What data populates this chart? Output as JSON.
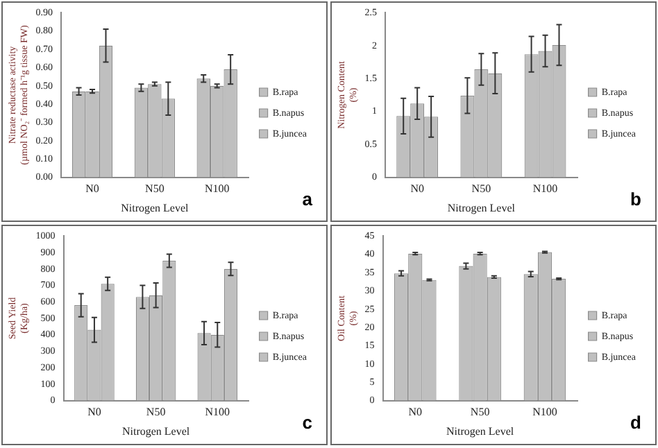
{
  "chart_data": [
    {
      "type": "bar",
      "categories": [
        "N0",
        "N50",
        "N100"
      ],
      "xlabel": "Nitrogen Level",
      "ylabel": "Nitrate reductase activity\n(µmol NO₂⁻ formed h⁻¹g tissue FW)",
      "ylim": [
        0,
        0.9
      ],
      "yticks": [
        {
          "value": 0,
          "label": "0.00"
        },
        {
          "value": 0.1,
          "label": "0.10"
        },
        {
          "value": 0.2,
          "label": "0.20"
        },
        {
          "value": 0.3,
          "label": "0.30"
        },
        {
          "value": 0.4,
          "label": "0.40"
        },
        {
          "value": 0.5,
          "label": "0.50"
        },
        {
          "value": 0.6,
          "label": "0.60"
        },
        {
          "value": 0.7,
          "label": "0.70"
        },
        {
          "value": 0.8,
          "label": "0.80"
        },
        {
          "value": 0.9,
          "label": "0.90"
        }
      ],
      "grid": false,
      "legend": "right",
      "annotations": [
        "a"
      ],
      "series": [
        {
          "name": "B.rapa",
          "color": "#bfbfbf",
          "values": [
            0.47,
            0.49,
            0.54
          ],
          "errors": [
            0.02,
            0.02,
            0.02
          ]
        },
        {
          "name": "B.napus",
          "color": "#bfbfbf",
          "values": [
            0.47,
            0.51,
            0.5
          ],
          "errors": [
            0.01,
            0.01,
            0.01
          ]
        },
        {
          "name": "B.juncea",
          "color": "#bfbfbf",
          "values": [
            0.72,
            0.43,
            0.59
          ],
          "errors": [
            0.09,
            0.09,
            0.08
          ]
        }
      ]
    },
    {
      "type": "bar",
      "categories": [
        "N0",
        "N50",
        "N100"
      ],
      "xlabel": "Nitrogen Level",
      "ylabel": "Nitrogen Content\n(%)",
      "ylim": [
        0,
        2.5
      ],
      "yticks": [
        0,
        0.5,
        1,
        1.5,
        2,
        2.5
      ],
      "grid": false,
      "legend": "right",
      "annotations": [
        "b"
      ],
      "series": [
        {
          "name": "B.rapa",
          "color": "#bfbfbf",
          "values": [
            0.93,
            1.24,
            1.87
          ],
          "errors": [
            0.27,
            0.27,
            0.27
          ]
        },
        {
          "name": "B.napus",
          "color": "#bfbfbf",
          "values": [
            1.12,
            1.64,
            1.92
          ],
          "errors": [
            0.24,
            0.24,
            0.24
          ]
        },
        {
          "name": "B.juncea",
          "color": "#bfbfbf",
          "values": [
            0.92,
            1.58,
            2.01
          ],
          "errors": [
            0.31,
            0.31,
            0.31
          ]
        }
      ]
    },
    {
      "type": "bar",
      "categories": [
        "N0",
        "N50",
        "N100"
      ],
      "xlabel": "Nitrogen Level",
      "ylabel": "Seed Yield\n(Kg/ha)",
      "ylim": [
        0,
        1000
      ],
      "yticks": [
        0,
        100,
        200,
        300,
        400,
        500,
        600,
        700,
        800,
        900,
        1000
      ],
      "grid": false,
      "legend": "right",
      "annotations": [
        "c"
      ],
      "series": [
        {
          "name": "B.rapa",
          "color": "#bfbfbf",
          "values": [
            580,
            630,
            410
          ],
          "errors": [
            70,
            70,
            70
          ]
        },
        {
          "name": "B.napus",
          "color": "#bfbfbf",
          "values": [
            430,
            640,
            400
          ],
          "errors": [
            75,
            75,
            75
          ]
        },
        {
          "name": "B.juncea",
          "color": "#bfbfbf",
          "values": [
            710,
            850,
            800
          ],
          "errors": [
            40,
            40,
            40
          ]
        }
      ]
    },
    {
      "type": "bar",
      "categories": [
        "N0",
        "N50",
        "N100"
      ],
      "xlabel": "Nitrogen Level",
      "ylabel": "Oil Content\n(%)",
      "ylim": [
        0,
        45
      ],
      "yticks": [
        0,
        5,
        10,
        15,
        20,
        25,
        30,
        35,
        40,
        45
      ],
      "grid": false,
      "legend": "right",
      "annotations": [
        "d"
      ],
      "series": [
        {
          "name": "B.rapa",
          "color": "#bfbfbf",
          "values": [
            34.8,
            36.8,
            34.6
          ],
          "errors": [
            0.7,
            0.8,
            0.7
          ]
        },
        {
          "name": "B.napus",
          "color": "#bfbfbf",
          "values": [
            40.2,
            40.2,
            40.6
          ],
          "errors": [
            0.3,
            0.3,
            0.2
          ]
        },
        {
          "name": "B.juncea",
          "color": "#bfbfbf",
          "values": [
            33.0,
            33.8,
            33.3
          ],
          "errors": [
            0.2,
            0.3,
            0.2
          ]
        }
      ]
    }
  ]
}
